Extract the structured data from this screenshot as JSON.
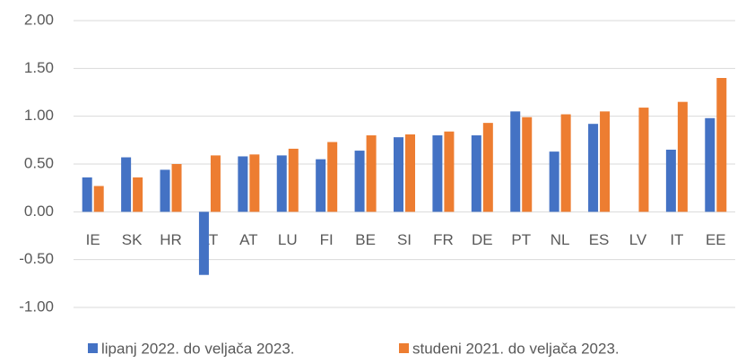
{
  "chart_data": {
    "type": "bar",
    "categories": [
      "IE",
      "SK",
      "HR",
      "LT",
      "AT",
      "LU",
      "FI",
      "BE",
      "SI",
      "FR",
      "DE",
      "PT",
      "NL",
      "ES",
      "LV",
      "IT",
      "EE"
    ],
    "series": [
      {
        "name": "lipanj 2022. do veljača 2023.",
        "color": "#4472c4",
        "values": [
          0.36,
          0.57,
          0.44,
          -0.66,
          0.58,
          0.59,
          0.55,
          0.64,
          0.78,
          0.8,
          0.8,
          1.05,
          0.63,
          0.92,
          null,
          0.65,
          0.98
        ]
      },
      {
        "name": "studeni 2021. do veljača 2023.",
        "color": "#ed7d31",
        "values": [
          0.27,
          0.36,
          0.5,
          0.59,
          0.6,
          0.66,
          0.73,
          0.8,
          0.81,
          0.84,
          0.93,
          0.99,
          1.02,
          1.05,
          1.09,
          1.15,
          1.4
        ]
      }
    ],
    "ylim": [
      -1,
      2
    ],
    "yticks": [
      {
        "value": -1,
        "label": "-1.00"
      },
      {
        "value": -0.5,
        "label": "-0.50"
      },
      {
        "value": 0,
        "label": "0.00"
      },
      {
        "value": 0.5,
        "label": "0.50"
      },
      {
        "value": 1,
        "label": "1.00"
      },
      {
        "value": 1.5,
        "label": "1.50"
      },
      {
        "value": 2,
        "label": "2.00"
      }
    ],
    "grid": true
  }
}
